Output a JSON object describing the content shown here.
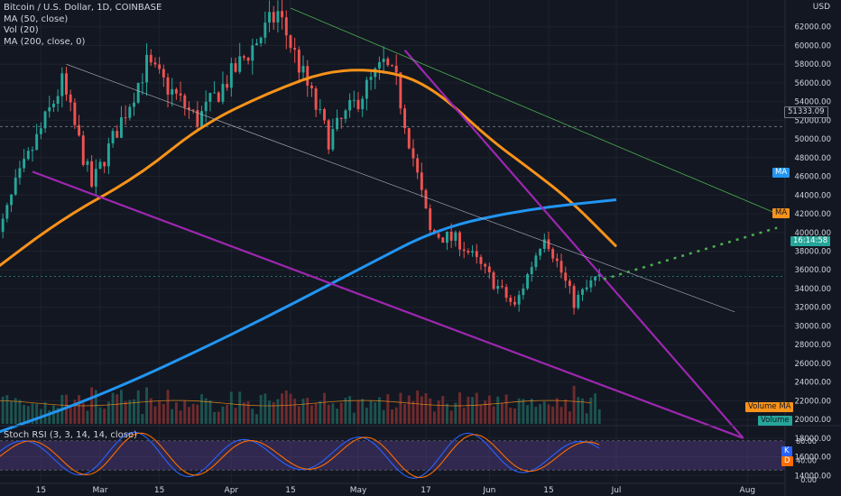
{
  "legend": {
    "symbol": "Bitcoin / U.S. Dollar, 1D, COINBASE",
    "ma50": "MA (50, close)",
    "vol": "Vol (20)",
    "ma200": "MA (200, close, 0)"
  },
  "stoch": {
    "label": "Stoch RSI (3, 3, 14, 14, close)",
    "ticks": [
      "80.00",
      "40.00",
      "0.00"
    ],
    "k_tag": "K",
    "d_tag": "D"
  },
  "price_axis": {
    "currency": "USD",
    "ticks": [
      "62000.00",
      "60000.00",
      "58000.00",
      "56000.00",
      "54000.00",
      "52000.00",
      "50000.00",
      "48000.00",
      "46000.00",
      "44000.00",
      "42000.00",
      "40000.00",
      "38000.00",
      "36000.00",
      "34000.00",
      "32000.00",
      "30000.00",
      "28000.00",
      "26000.00",
      "24000.00",
      "22000.00",
      "20000.00",
      "18000.00",
      "16000.00",
      "14000.00"
    ],
    "tags": {
      "level_price": "51333.09",
      "current_price": "16:14:58",
      "ma200": "MA",
      "ma50": "MA",
      "volume_ma": "Volume MA",
      "volume": "Volume"
    }
  },
  "time_axis": [
    "15",
    "Mar",
    "15",
    "Apr",
    "15",
    "May",
    "17",
    "Jun",
    "15",
    "Jul",
    "Aug"
  ],
  "colors": {
    "background": "#131722",
    "up": "#26a69a",
    "down": "#ef5350",
    "ma50": "#f7931a",
    "ma200": "#2196f3",
    "trendline": "#9c27b0",
    "projection": "#4caf50",
    "channel_top": "#4caf50",
    "stoch_k": "#2962ff",
    "stoch_d": "#ff6d00"
  },
  "chart_data": {
    "type": "candlestick",
    "symbol": "BTCUSD",
    "timeframe": "1D",
    "ylim": [
      12000,
      64000
    ],
    "reference_level": 51333.09,
    "candle_trend_anchors": [
      [
        "Feb 4",
        37000
      ],
      [
        "Feb 10",
        45000
      ],
      [
        "Feb 21",
        56000
      ],
      [
        "Feb 28",
        45000
      ],
      [
        "Mar 13",
        58000
      ],
      [
        "Mar 25",
        52000
      ],
      [
        "Apr 13",
        63500
      ],
      [
        "Apr 25",
        50000
      ],
      [
        "May 8",
        58000
      ],
      [
        "May 11",
        56000
      ],
      [
        "May 19",
        40000
      ],
      [
        "May 26",
        39000
      ],
      [
        "Jun 8",
        32000
      ],
      [
        "Jun 15",
        40000
      ],
      [
        "Jun 22",
        32500
      ],
      [
        "Jun 27",
        35000
      ]
    ],
    "ma50_anchors": [
      [
        "Feb 1",
        35000
      ],
      [
        "Feb 20",
        41500
      ],
      [
        "Mar 10",
        46000
      ],
      [
        "Mar 25",
        51500
      ],
      [
        "Apr 10",
        55000
      ],
      [
        "Apr 25",
        57500
      ],
      [
        "May 10",
        57200
      ],
      [
        "May 20",
        55000
      ],
      [
        "Jun 1",
        50000
      ],
      [
        "Jun 10",
        47000
      ],
      [
        "Jun 20",
        43500
      ],
      [
        "Jul 1",
        38500
      ]
    ],
    "ma200_anchors": [
      [
        "Feb 1",
        18000
      ],
      [
        "Mar 1",
        22500
      ],
      [
        "Apr 1",
        29000
      ],
      [
        "May 1",
        36000
      ],
      [
        "May 20",
        40500
      ],
      [
        "Jun 10",
        42500
      ],
      [
        "Jul 1",
        43500
      ]
    ],
    "trendlines": [
      {
        "name": "",
        "from": [
          "Feb 13",
          46500
        ],
        "to": [
          "Jul 31",
          18000
        ]
      },
      {
        "name": "",
        "from": [
          "May 12",
          59500
        ],
        "to": [
          "Jul 31",
          18000
        ]
      },
      {
        "name": "",
        "from": [
          "Apr 15",
          64000
        ],
        "to": [
          "Aug 8",
          42000
        ]
      },
      {
        "name": "",
        "from": [
          "Feb 21",
          58000
        ],
        "to": [
          "Jul 29",
          31500
        ]
      }
    ],
    "projection": {
      "from": [
        "Jun 28",
        35000
      ],
      "to": [
        "Aug 8",
        40500
      ]
    },
    "volume_ma_level": 0.5,
    "stoch_range": [
      0,
      100
    ]
  }
}
